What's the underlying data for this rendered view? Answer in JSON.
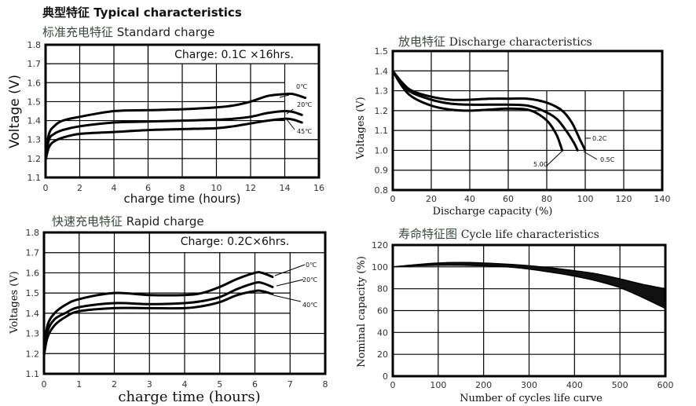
{
  "page": {
    "heading": "典型特征 Typical characteristics"
  },
  "chart_data": [
    {
      "id": "standard",
      "type": "line",
      "title": "标准充电特征 Standard charge",
      "title_cn": "标准充电特征",
      "title_en": "Standard charge",
      "annotation": "Charge: 0.1C ×16hrs.",
      "xlabel": "charge time (hours)",
      "ylabel": "Voltage (V)",
      "xlim": [
        0,
        16
      ],
      "ylim": [
        1.1,
        1.8
      ],
      "xticks": [
        0,
        2,
        4,
        6,
        8,
        10,
        12,
        14,
        16
      ],
      "yticks": [
        1.1,
        1.2,
        1.3,
        1.4,
        1.5,
        1.6,
        1.7,
        1.8
      ],
      "grid": true,
      "series": [
        {
          "name": "0℃",
          "x": [
            0,
            0.2,
            0.5,
            1,
            2,
            4,
            6,
            8,
            10,
            11,
            12,
            13,
            14,
            14.5,
            15.2
          ],
          "y": [
            1.22,
            1.33,
            1.37,
            1.4,
            1.42,
            1.45,
            1.455,
            1.46,
            1.47,
            1.48,
            1.5,
            1.53,
            1.54,
            1.54,
            1.52
          ]
        },
        {
          "name": "20℃",
          "x": [
            0,
            0.2,
            0.5,
            1,
            2,
            4,
            6,
            8,
            10,
            11,
            12,
            13,
            14,
            14.5,
            15
          ],
          "y": [
            1.2,
            1.3,
            1.33,
            1.35,
            1.37,
            1.39,
            1.395,
            1.4,
            1.405,
            1.41,
            1.42,
            1.44,
            1.45,
            1.445,
            1.43
          ]
        },
        {
          "name": "45℃",
          "x": [
            0,
            0.2,
            0.5,
            1,
            2,
            4,
            6,
            8,
            10,
            11,
            12,
            13,
            14,
            14.5,
            15
          ],
          "y": [
            1.19,
            1.26,
            1.29,
            1.31,
            1.33,
            1.34,
            1.35,
            1.355,
            1.36,
            1.37,
            1.385,
            1.4,
            1.41,
            1.405,
            1.39
          ]
        }
      ]
    },
    {
      "id": "discharge",
      "type": "line",
      "title": "放电特征 Discharge characteristics",
      "title_cn": "放电特征",
      "title_en": "Discharge characteristics",
      "xlabel": "Discharge capacity (%)",
      "ylabel": "Voltages (V)",
      "xlim": [
        0,
        140
      ],
      "ylim": [
        0.8,
        1.5
      ],
      "xticks": [
        0,
        20,
        40,
        60,
        80,
        100,
        120,
        140
      ],
      "yticks": [
        0.8,
        0.9,
        1.0,
        1.1,
        1.2,
        1.3,
        1.4,
        1.5
      ],
      "grid": true,
      "series": [
        {
          "name": "0.2C",
          "x": [
            0,
            5,
            10,
            20,
            30,
            40,
            50,
            60,
            70,
            80,
            88,
            93,
            97,
            100
          ],
          "y": [
            1.4,
            1.34,
            1.3,
            1.27,
            1.255,
            1.255,
            1.26,
            1.26,
            1.26,
            1.24,
            1.2,
            1.14,
            1.06,
            1.0
          ]
        },
        {
          "name": "0.5C",
          "x": [
            0,
            5,
            10,
            20,
            30,
            40,
            50,
            60,
            70,
            78,
            85,
            90,
            94,
            96
          ],
          "y": [
            1.4,
            1.33,
            1.29,
            1.255,
            1.235,
            1.23,
            1.23,
            1.23,
            1.225,
            1.2,
            1.16,
            1.1,
            1.04,
            1.0
          ]
        },
        {
          "name": "5.0C",
          "x": [
            0,
            5,
            10,
            20,
            30,
            40,
            50,
            60,
            70,
            76,
            81,
            85,
            87,
            88
          ],
          "y": [
            1.4,
            1.32,
            1.27,
            1.225,
            1.205,
            1.2,
            1.205,
            1.21,
            1.205,
            1.18,
            1.14,
            1.08,
            1.03,
            1.0
          ]
        }
      ]
    },
    {
      "id": "rapid",
      "type": "line",
      "title": "快速充电特征 Rapid charge",
      "title_cn": "快速充电特征",
      "title_en": "Rapid charge",
      "annotation": "Charge: 0.2C×6hrs.",
      "xlabel": "charge time (hours)",
      "ylabel": "Voltages (V)",
      "xlim": [
        0,
        8
      ],
      "ylim": [
        1.1,
        1.8
      ],
      "xticks": [
        0,
        1,
        2,
        3,
        4,
        5,
        6,
        7,
        8
      ],
      "yticks": [
        1.1,
        1.2,
        1.3,
        1.4,
        1.5,
        1.6,
        1.7,
        1.8
      ],
      "grid": true,
      "series": [
        {
          "name": "0℃",
          "x": [
            0,
            0.1,
            0.3,
            0.6,
            1,
            2,
            3,
            4,
            4.5,
            5,
            5.5,
            6,
            6.2,
            6.5
          ],
          "y": [
            1.22,
            1.34,
            1.4,
            1.44,
            1.47,
            1.5,
            1.49,
            1.49,
            1.5,
            1.53,
            1.57,
            1.6,
            1.6,
            1.58
          ]
        },
        {
          "name": "20℃",
          "x": [
            0,
            0.1,
            0.3,
            0.6,
            1,
            2,
            3,
            4,
            4.5,
            5,
            5.5,
            6,
            6.2,
            6.5
          ],
          "y": [
            1.2,
            1.31,
            1.37,
            1.4,
            1.43,
            1.45,
            1.445,
            1.45,
            1.46,
            1.48,
            1.52,
            1.55,
            1.55,
            1.53
          ]
        },
        {
          "name": "40℃",
          "x": [
            0,
            0.1,
            0.3,
            0.6,
            1,
            2,
            3,
            4,
            4.5,
            5,
            5.5,
            6,
            6.2,
            6.5
          ],
          "y": [
            1.19,
            1.28,
            1.34,
            1.38,
            1.41,
            1.425,
            1.425,
            1.425,
            1.435,
            1.455,
            1.49,
            1.51,
            1.51,
            1.495
          ]
        }
      ]
    },
    {
      "id": "cycle",
      "type": "area",
      "title": "寿命特征图 Cycle life characteristics",
      "title_cn": "寿命特征图",
      "title_en": "Cycle life characteristics",
      "xlabel": "Number of cycles life curve",
      "ylabel": "Nominal capacity (%)",
      "xlim": [
        0,
        600
      ],
      "ylim": [
        0,
        120
      ],
      "xticks": [
        0,
        100,
        200,
        300,
        400,
        500,
        600
      ],
      "yticks": [
        0,
        20,
        40,
        60,
        80,
        100,
        120
      ],
      "grid": true,
      "series": [
        {
          "name": "upper bound",
          "x": [
            0,
            50,
            100,
            150,
            200,
            250,
            300,
            350,
            400,
            450,
            500,
            550,
            600
          ],
          "y": [
            100,
            102,
            103.5,
            104,
            103.5,
            102.5,
            101,
            99,
            96.5,
            93.5,
            89,
            84,
            80
          ]
        },
        {
          "name": "lower bound",
          "x": [
            0,
            50,
            100,
            150,
            200,
            250,
            300,
            350,
            400,
            450,
            500,
            550,
            600
          ],
          "y": [
            100,
            101,
            101.5,
            101.5,
            101,
            100,
            98,
            95,
            91.5,
            87,
            81,
            72,
            62
          ]
        }
      ]
    }
  ]
}
